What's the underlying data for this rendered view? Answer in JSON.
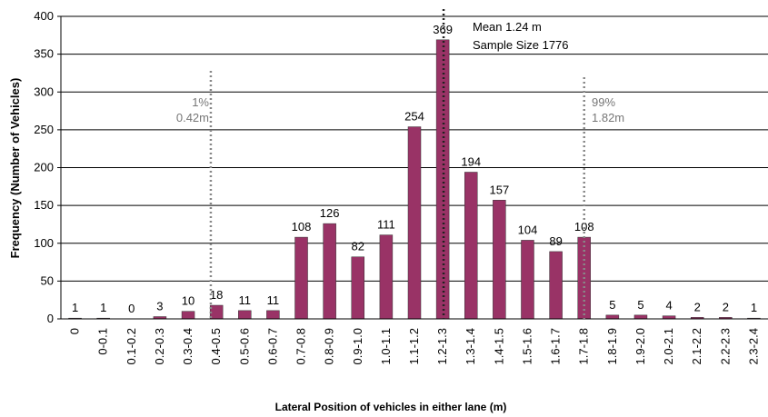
{
  "chart_data": {
    "type": "bar",
    "x_label": "Lateral Position of vehicles in either lane (m)",
    "y_label": "Frequency (Number of Vehicles)",
    "categories": [
      "0",
      "0-0.1",
      "0.1-0.2",
      "0.2-0.3",
      "0.3-0.4",
      "0.4-0.5",
      "0.5-0.6",
      "0.6-0.7",
      "0.7-0.8",
      "0.8-0.9",
      "0.9-1.0",
      "1.0-1.1",
      "1.1-1.2",
      "1.2-1.3",
      "1.3-1.4",
      "1.4-1.5",
      "1.5-1.6",
      "1.6-1.7",
      "1.7-1.8",
      "1.8-1.9",
      "1.9-2.0",
      "2.0-2.1",
      "2.1-2.2",
      "2.2-2.3",
      "2.3-2.4"
    ],
    "values": [
      1,
      1,
      0,
      3,
      10,
      18,
      11,
      11,
      108,
      126,
      82,
      111,
      254,
      369,
      194,
      157,
      104,
      89,
      108,
      5,
      5,
      4,
      2,
      2,
      1
    ],
    "color": "#993366",
    "ylim": [
      0,
      400
    ],
    "yticks": [
      0,
      50,
      100,
      150,
      200,
      250,
      300,
      350,
      400
    ],
    "grid": true,
    "annotations": {
      "low_pct": "1%",
      "low_value": "0.42m",
      "high_pct": "99%",
      "high_value": "1.82m",
      "mean": "Mean 1.24 m",
      "sample": "Sample Size 1776"
    }
  }
}
